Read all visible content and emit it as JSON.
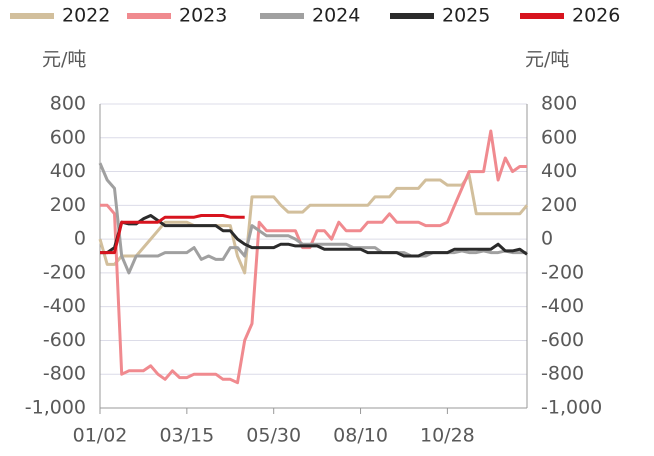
{
  "chart_data": {
    "type": "line",
    "y_axis_label": "元/吨",
    "y2_axis_label": "元/吨",
    "categories": [
      "01/02",
      null,
      null,
      null,
      null,
      null,
      null,
      null,
      null,
      null,
      null,
      null,
      "03/15",
      null,
      null,
      null,
      null,
      null,
      null,
      null,
      null,
      null,
      null,
      null,
      "05/30",
      null,
      null,
      null,
      null,
      null,
      null,
      null,
      null,
      null,
      null,
      null,
      "08/10",
      null,
      null,
      null,
      null,
      null,
      null,
      null,
      null,
      null,
      null,
      null,
      "10/28",
      null,
      null,
      null,
      null,
      null,
      null,
      null,
      null,
      null,
      null,
      null
    ],
    "ylim": [
      -1000,
      800
    ],
    "yticks": [
      {
        "value": -1000,
        "label": "-1,000"
      },
      -800,
      -600,
      -400,
      -200,
      0,
      200,
      400,
      600,
      800
    ],
    "y2lim": [
      -1000,
      800
    ],
    "y2ticks": [
      {
        "value": -1000,
        "label": "-1,000"
      },
      -800,
      -600,
      -400,
      -200,
      0,
      200,
      400,
      600,
      800
    ],
    "grid": true,
    "series": [
      {
        "name": "2022",
        "color": "#d2bf9c",
        "values": [
          0,
          -150,
          -150,
          -100,
          -100,
          -100,
          -50,
          0,
          50,
          100,
          100,
          100,
          100,
          80,
          80,
          80,
          80,
          80,
          80,
          -100,
          -200,
          250,
          250,
          250,
          250,
          200,
          160,
          160,
          160,
          200,
          200,
          200,
          200,
          200,
          200,
          200,
          200,
          200,
          250,
          250,
          250,
          300,
          300,
          300,
          300,
          350,
          350,
          350,
          320,
          320,
          320,
          380,
          150,
          150,
          150,
          150,
          150,
          150,
          150,
          200
        ]
      },
      {
        "name": "2023",
        "color": "#f08a8f",
        "values": [
          200,
          200,
          150,
          -800,
          -780,
          -780,
          -780,
          -750,
          -800,
          -830,
          -780,
          -820,
          -820,
          -800,
          -800,
          -800,
          -800,
          -830,
          -830,
          -850,
          -600,
          -500,
          100,
          50,
          50,
          50,
          50,
          50,
          -50,
          -50,
          50,
          50,
          0,
          100,
          50,
          50,
          50,
          100,
          100,
          100,
          150,
          100,
          100,
          100,
          100,
          80,
          80,
          80,
          100,
          200,
          300,
          400,
          400,
          400,
          640,
          350,
          480,
          400,
          430,
          430
        ]
      },
      {
        "name": "2024",
        "color": "#a0a0a0",
        "values": [
          450,
          350,
          300,
          -100,
          -200,
          -100,
          -100,
          -100,
          -100,
          -80,
          -80,
          -80,
          -80,
          -50,
          -120,
          -100,
          -120,
          -120,
          -50,
          -50,
          -100,
          80,
          50,
          20,
          20,
          20,
          20,
          0,
          -30,
          -30,
          -30,
          -30,
          -30,
          -30,
          -30,
          -50,
          -50,
          -50,
          -50,
          -80,
          -80,
          -80,
          -80,
          -100,
          -100,
          -100,
          -80,
          -80,
          -80,
          -80,
          -70,
          -80,
          -80,
          -70,
          -80,
          -80,
          -70,
          -80,
          -80,
          -80
        ]
      },
      {
        "name": "2025",
        "color": "#2b2b2b",
        "values": [
          -80,
          -80,
          -50,
          100,
          90,
          90,
          120,
          140,
          110,
          80,
          80,
          80,
          80,
          80,
          80,
          80,
          80,
          50,
          50,
          0,
          -30,
          -50,
          -50,
          -50,
          -50,
          -30,
          -30,
          -40,
          -40,
          -40,
          -40,
          -60,
          -60,
          -60,
          -60,
          -60,
          -60,
          -80,
          -80,
          -80,
          -80,
          -80,
          -100,
          -100,
          -100,
          -80,
          -80,
          -80,
          -80,
          -60,
          -60,
          -60,
          -60,
          -60,
          -60,
          -30,
          -70,
          -70,
          -60,
          -90
        ]
      },
      {
        "name": "2026",
        "color": "#d7141e",
        "values": [
          -80,
          -80,
          -80,
          100,
          100,
          100,
          100,
          100,
          100,
          130,
          130,
          130,
          130,
          130,
          140,
          140,
          140,
          140,
          130,
          130,
          130,
          null,
          null,
          null,
          null,
          null,
          null,
          null,
          null,
          null,
          null,
          null,
          null,
          null,
          null,
          null,
          null,
          null,
          null,
          null,
          null,
          null,
          null,
          null,
          null,
          null,
          null,
          null,
          null,
          null,
          null,
          null,
          null,
          null,
          null,
          null,
          null,
          null,
          null,
          null
        ]
      }
    ]
  }
}
